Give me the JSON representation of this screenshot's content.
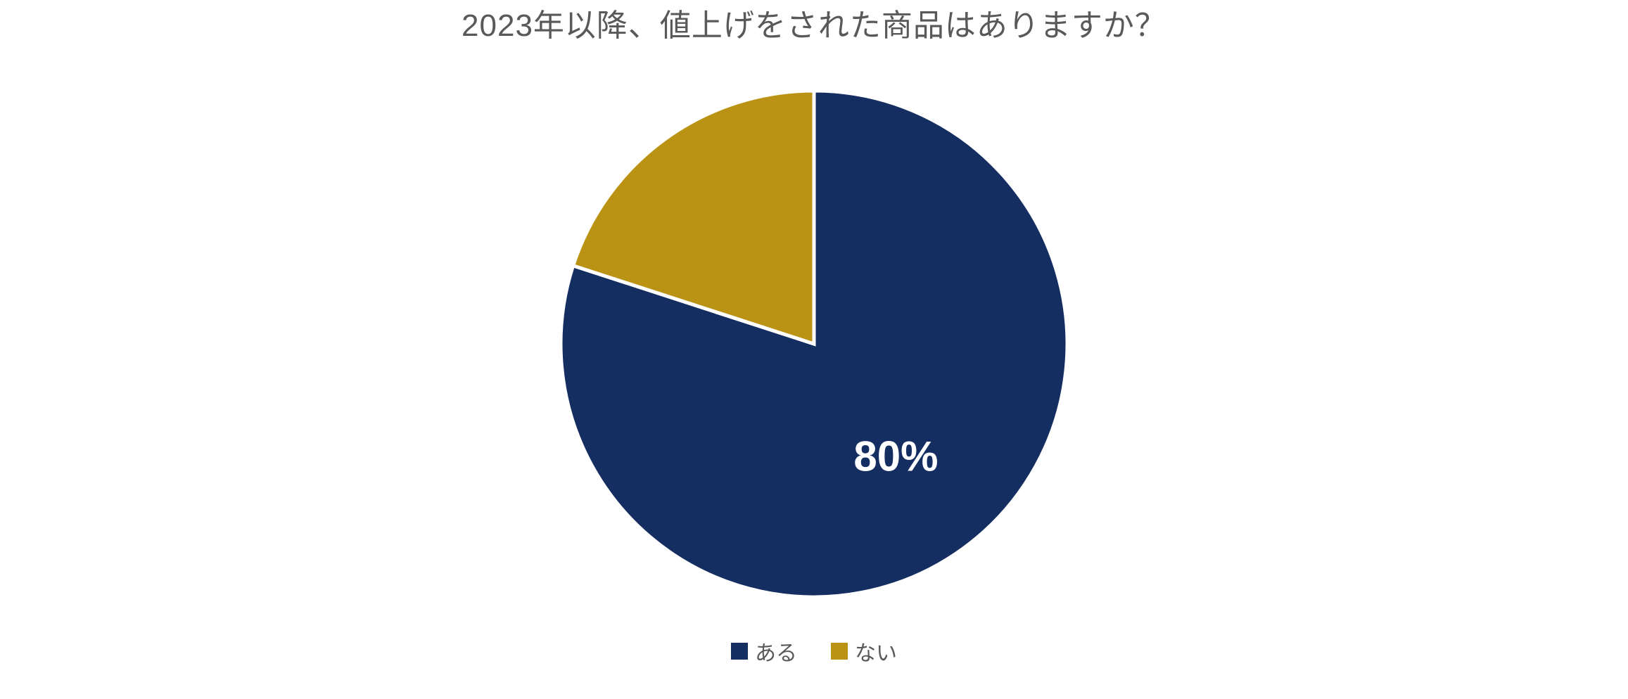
{
  "chart": {
    "type": "pie",
    "title": "2023年以降、値上げをされた商品はありますか？",
    "title_fontsize": 44,
    "title_color": "#595959",
    "background_color": "#ffffff",
    "stroke_color": "#ffffff",
    "stroke_width": 5,
    "radius": 360,
    "slices": [
      {
        "label": "ある",
        "value": 80,
        "color": "#152e61",
        "data_label": "80%",
        "show_data_label": true
      },
      {
        "label": "ない",
        "value": 20,
        "color": "#bb9314",
        "data_label": "20%",
        "show_data_label": false
      }
    ],
    "data_label": {
      "fontsize": 60,
      "fontweight": 700,
      "color": "#ffffff",
      "radius_factor": 0.55
    },
    "legend": {
      "position": "bottom",
      "fontsize": 30,
      "color": "#595959",
      "swatch_size": 24,
      "gap": 48
    }
  }
}
